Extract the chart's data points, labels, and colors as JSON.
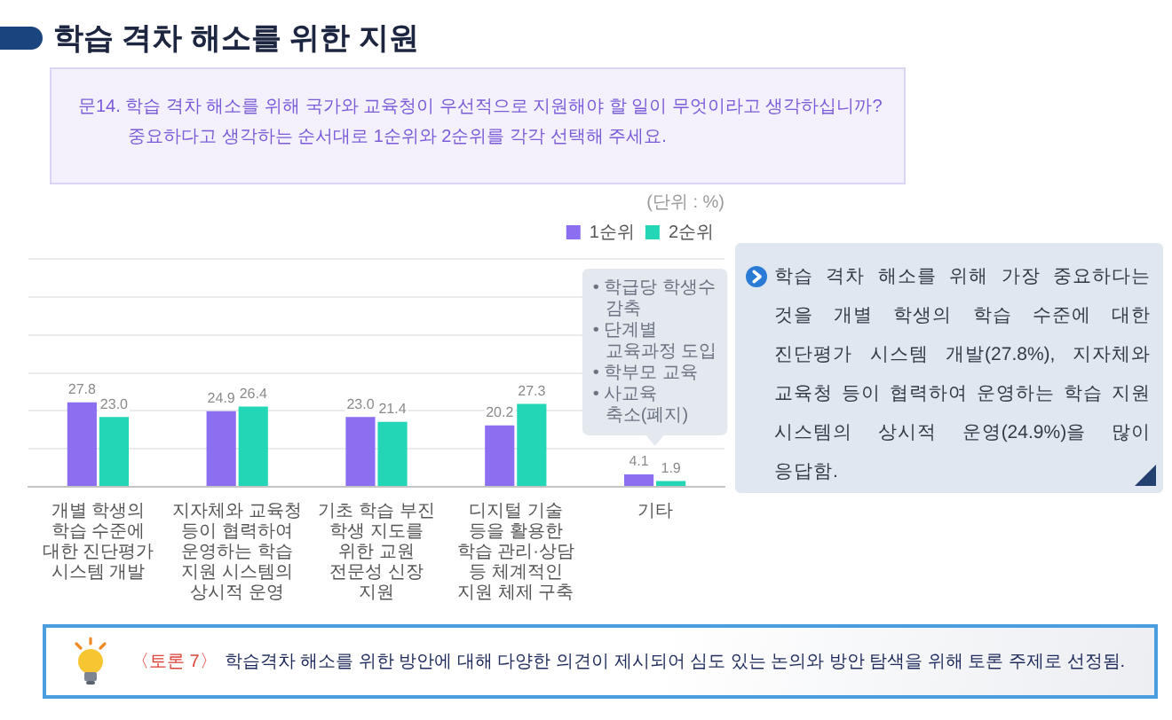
{
  "chart_data": {
    "type": "bar",
    "title": "학습 격차 해소를 위한 지원",
    "subtitle": "문14. 학습 격차 해소를 위해 국가와 교육청이 우선적으로 지원해야 할 일이 무엇이라고 생각하십니까?\n중요하다고 생각하는 순서대로 1순위와 2순위를 각각 선택해 주세요.",
    "categories": [
      "개별 학생의 학습 수준에 대한 진단평가 시스템 개발",
      "지자체와 교육청 등이 협력하여 운영하는 학습 지원 시스템의 상시적 운영",
      "기초 학습 부진 학생 지도를 위한 교원 전문성 신장 지원",
      "디지털 기술 등을 활용한 학습 관리·상담 등 체계적인 지원 체제 구축",
      "기타"
    ],
    "series": [
      {
        "name": "1순위",
        "color": "#8c6ef0",
        "values": [
          27.8,
          24.9,
          23.0,
          20.2,
          4.1
        ],
        "value_labels": [
          "27.8",
          "24.9",
          "23.0",
          "20.2",
          "4.1"
        ]
      },
      {
        "name": "2순위",
        "color": "#22d6b6",
        "values": [
          23.0,
          26.4,
          21.4,
          27.3,
          1.9
        ],
        "value_labels": [
          "23.0",
          "26.4",
          "21.4",
          "27.3",
          "1.9"
        ]
      }
    ],
    "ylim": [
      0,
      75
    ],
    "yticks": [
      {
        "value": 0,
        "label": null
      },
      {
        "value": 12.5,
        "label": null
      },
      {
        "value": 25,
        "label": null
      },
      {
        "value": 37.5,
        "label": null
      },
      {
        "value": 50,
        "label": null
      },
      {
        "value": 62.5,
        "label": null
      },
      {
        "value": 75,
        "label": null
      }
    ],
    "tick_labels": "x",
    "grid": "y",
    "legend": "top right",
    "annotations": [
      "(단위 : %)",
      {
        "text": "• 학급당 학생수 감축\n• 단계별 교육과정 도입\n• 학부모 교육\n• 사교육 축소(폐지)",
        "x": "기타",
        "y": 4.1
      },
      "학습 격차 해소를 위해 가장 중요하다는 것을 개별 학생의 학습 수준에 대한 진단평가 시스템 개발(27.8%), 지자체와 교육청 등이 협력하여 운영하는 학습 지원 시스템의 상시적 운영(24.9%)을 많이 응답함.",
      "〈토론 7〉",
      "학습격차 해소를 위한 방안에 대해 다양한 의견이 제시되어 심도 있는 논의와 방안 탐색을 위해 토론 주제로 선정됨."
    ]
  }
}
